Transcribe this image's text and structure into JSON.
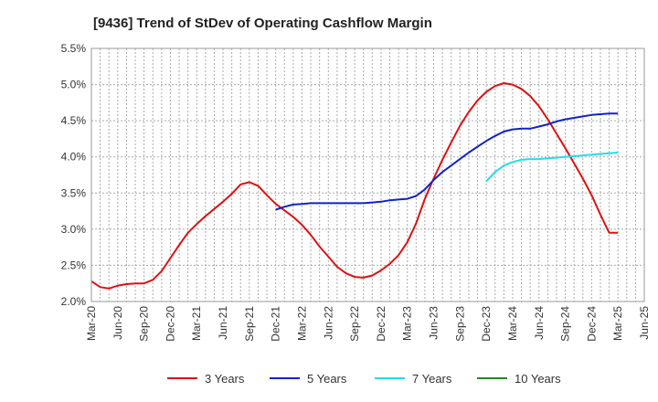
{
  "chart_data": {
    "type": "line",
    "title": "[9436]  Trend of StDev of Operating Cashflow Margin",
    "xlabel": "",
    "ylabel": "",
    "x_ticks": [
      "Mar-20",
      "Jun-20",
      "Sep-20",
      "Dec-20",
      "Mar-21",
      "Jun-21",
      "Sep-21",
      "Dec-21",
      "Mar-22",
      "Jun-22",
      "Sep-22",
      "Dec-22",
      "Mar-23",
      "Jun-23",
      "Sep-23",
      "Dec-23",
      "Mar-24",
      "Jun-24",
      "Sep-24",
      "Dec-24",
      "Mar-25",
      "Jun-25"
    ],
    "y_ticks": [
      "2.0%",
      "2.5%",
      "3.0%",
      "3.5%",
      "4.0%",
      "4.5%",
      "5.0%",
      "5.5%"
    ],
    "ylim": [
      2.0,
      5.5
    ],
    "grid": true,
    "legend_position": "bottom",
    "series": [
      {
        "name": "3 Years",
        "color": "#dd1111",
        "x": [
          "Mar-20",
          "Apr-20",
          "May-20",
          "Jun-20",
          "Jul-20",
          "Aug-20",
          "Sep-20",
          "Oct-20",
          "Nov-20",
          "Dec-20",
          "Jan-21",
          "Feb-21",
          "Mar-21",
          "Apr-21",
          "May-21",
          "Jun-21",
          "Jul-21",
          "Aug-21",
          "Sep-21",
          "Oct-21",
          "Nov-21",
          "Dec-21",
          "Jan-22",
          "Feb-22",
          "Mar-22",
          "Apr-22",
          "May-22",
          "Jun-22",
          "Jul-22",
          "Aug-22",
          "Sep-22",
          "Oct-22",
          "Nov-22",
          "Dec-22",
          "Jan-23",
          "Feb-23",
          "Mar-23",
          "Apr-23",
          "May-23",
          "Jun-23",
          "Jul-23",
          "Aug-23",
          "Sep-23",
          "Oct-23",
          "Nov-23",
          "Dec-23",
          "Jan-24",
          "Feb-24",
          "Mar-24",
          "Apr-24",
          "May-24",
          "Jun-24",
          "Jul-24",
          "Aug-24",
          "Sep-24",
          "Oct-24",
          "Nov-24",
          "Dec-24",
          "Jan-25",
          "Feb-25",
          "Mar-25"
        ],
        "values": [
          2.28,
          2.2,
          2.18,
          2.22,
          2.24,
          2.25,
          2.25,
          2.3,
          2.42,
          2.6,
          2.78,
          2.95,
          3.07,
          3.18,
          3.28,
          3.38,
          3.49,
          3.62,
          3.65,
          3.6,
          3.47,
          3.35,
          3.26,
          3.17,
          3.06,
          2.92,
          2.76,
          2.62,
          2.48,
          2.39,
          2.34,
          2.33,
          2.36,
          2.43,
          2.52,
          2.64,
          2.82,
          3.08,
          3.42,
          3.7,
          3.96,
          4.2,
          4.43,
          4.62,
          4.78,
          4.9,
          4.98,
          5.02,
          5.0,
          4.94,
          4.84,
          4.7,
          4.52,
          4.32,
          4.12,
          3.91,
          3.7,
          3.47,
          3.2,
          2.95,
          2.95
        ]
      },
      {
        "name": "5 Years",
        "color": "#1122cc",
        "x": [
          "Dec-21",
          "Jan-22",
          "Feb-22",
          "Mar-22",
          "Apr-22",
          "May-22",
          "Jun-22",
          "Jul-22",
          "Aug-22",
          "Sep-22",
          "Oct-22",
          "Nov-22",
          "Dec-22",
          "Jan-23",
          "Feb-23",
          "Mar-23",
          "Apr-23",
          "May-23",
          "Jun-23",
          "Jul-23",
          "Aug-23",
          "Sep-23",
          "Oct-23",
          "Nov-23",
          "Dec-23",
          "Jan-24",
          "Feb-24",
          "Mar-24",
          "Apr-24",
          "May-24",
          "Jun-24",
          "Jul-24",
          "Aug-24",
          "Sep-24",
          "Oct-24",
          "Nov-24",
          "Dec-24",
          "Jan-25",
          "Feb-25",
          "Mar-25"
        ],
        "values": [
          3.27,
          3.31,
          3.34,
          3.35,
          3.36,
          3.36,
          3.36,
          3.36,
          3.36,
          3.36,
          3.36,
          3.37,
          3.38,
          3.4,
          3.41,
          3.42,
          3.46,
          3.55,
          3.68,
          3.79,
          3.88,
          3.97,
          4.06,
          4.14,
          4.22,
          4.29,
          4.35,
          4.38,
          4.39,
          4.39,
          4.42,
          4.45,
          4.49,
          4.52,
          4.54,
          4.56,
          4.58,
          4.59,
          4.6,
          4.6
        ]
      },
      {
        "name": "7 Years",
        "color": "#22ddee",
        "x": [
          "Dec-23",
          "Jan-24",
          "Feb-24",
          "Mar-24",
          "Apr-24",
          "May-24",
          "Jun-24",
          "Jul-24",
          "Aug-24",
          "Sep-24",
          "Oct-24",
          "Nov-24",
          "Dec-24",
          "Jan-25",
          "Feb-25",
          "Mar-25"
        ],
        "values": [
          3.66,
          3.79,
          3.88,
          3.93,
          3.96,
          3.97,
          3.97,
          3.98,
          3.99,
          4.0,
          4.01,
          4.02,
          4.03,
          4.04,
          4.05,
          4.06
        ]
      },
      {
        "name": "10 Years",
        "color": "#228822",
        "x": [],
        "values": []
      }
    ]
  }
}
